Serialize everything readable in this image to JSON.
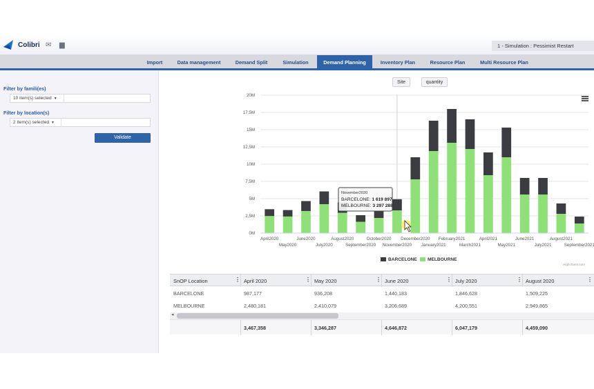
{
  "header": {
    "brand": "Colibri",
    "icons": [
      "mail-icon",
      "chat-icon"
    ],
    "simulation": "1 - Simulation : Pessimist Restart"
  },
  "nav": {
    "tabs": [
      {
        "label": "Import"
      },
      {
        "label": "Data management"
      },
      {
        "label": "Demand Split"
      },
      {
        "label": "Simulation"
      },
      {
        "label": "Demand Planning",
        "active": true
      },
      {
        "label": "Inventory Plan"
      },
      {
        "label": "Resource Plan"
      },
      {
        "label": "Multi Resource Plan"
      }
    ],
    "accent": "#2f63a8"
  },
  "filters": {
    "family_label": "Filter by famili(es)",
    "family_value": "10 item(s) selected",
    "location_label": "Filter by location(s)",
    "location_value": "2 item(s) selected",
    "validate_label": "Validate"
  },
  "chart_controls": {
    "site_label": "Site",
    "quantity_label": "quantity"
  },
  "chart_data": {
    "type": "bar",
    "stacked": true,
    "categories": [
      "April2020",
      "May2020",
      "June2020",
      "July2020",
      "August2020",
      "September2020",
      "October2020",
      "November2020",
      "December2020",
      "January2021",
      "February2021",
      "March2021",
      "April2021",
      "May2021",
      "June2021",
      "July2021",
      "August2021",
      "September2021"
    ],
    "series": [
      {
        "name": "MELBOURNE",
        "color": "#90e07a",
        "values": [
          2480181,
          2410079,
          3206689,
          4200551,
          2949865,
          1650000,
          2200000,
          3297288,
          7800000,
          11900000,
          13100000,
          12200000,
          8400000,
          11000000,
          5600000,
          5600000,
          2800000,
          1400000
        ]
      },
      {
        "name": "BARCELONE",
        "color": "#3a3c42",
        "values": [
          987177,
          936208,
          1440183,
          1846628,
          1509225,
          950000,
          1000000,
          1619897,
          3200000,
          4400000,
          4900000,
          4300000,
          3300000,
          4300000,
          2400000,
          2400000,
          1500000,
          1000000
        ]
      }
    ],
    "yticks": [
      "0M",
      "2,5M",
      "5M",
      "7,5M",
      "10M",
      "12,5M",
      "15M",
      "17,5M",
      "20M"
    ],
    "ylim": [
      0,
      20000000
    ],
    "legend": "bottom-center",
    "tooltip": {
      "category": "November2020",
      "lines": [
        {
          "name": "BARCELONE",
          "value": "1 619 897"
        },
        {
          "name": "MELBOURNE",
          "value": "3 297 288"
        }
      ]
    },
    "credit": "Highcharts.com"
  },
  "table": {
    "columns": [
      "SnOP Location",
      "April 2020",
      "May 2020",
      "June 2020",
      "July 2020",
      "August 2020"
    ],
    "rows": [
      [
        "BARCELONE",
        "987,177",
        "936,208",
        "1,440,183",
        "1,846,628",
        "1,509,225"
      ],
      [
        "MELBOURNE",
        "2,480,181",
        "2,410,079",
        "3,206,689",
        "4,200,551",
        "2,949,865"
      ]
    ],
    "totals": [
      "",
      "3,467,358",
      "3,346,287",
      "4,646,872",
      "6,047,179",
      "4,459,090"
    ]
  }
}
